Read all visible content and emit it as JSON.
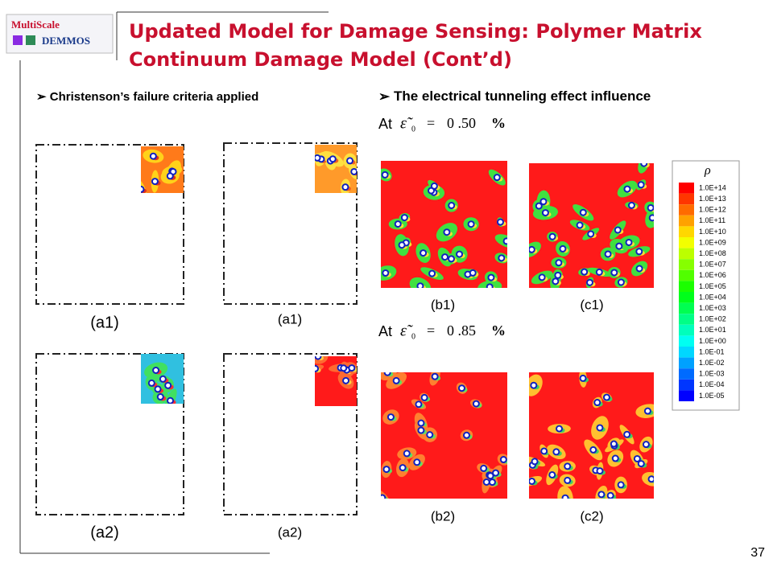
{
  "logo": {
    "line1": "MultiScale",
    "line2": "DEMMOS"
  },
  "title": {
    "line1": "Updated Model for Damage Sensing: Polymer Matrix",
    "line2": "Continuum Damage Model  (Cont’d)"
  },
  "left": {
    "bullet": "Christenson’s failure criteria applied",
    "labels": [
      "(a1)",
      "(a1)",
      "(a2)",
      "(a2)"
    ]
  },
  "right": {
    "bullet": "The electrical tunneling effect influence",
    "strains": [
      {
        "prefix": "At",
        "symbol": "ε̃",
        "subscript": "0",
        "equals": "=",
        "value": "0 .50",
        "unit": "%"
      },
      {
        "prefix": "At",
        "symbol": "ε̃",
        "subscript": "0",
        "equals": "=",
        "value": "0 .85",
        "unit": "%"
      }
    ],
    "labels": [
      "(b1)",
      "(c1)",
      "(b2)",
      "(c2)"
    ]
  },
  "legend": {
    "title": "ρ",
    "entries": [
      "1.0E+14",
      "1.0E+13",
      "1.0E+12",
      "1.0E+11",
      "1.0E+10",
      "1.0E+09",
      "1.0E+08",
      "1.0E+07",
      "1.0E+06",
      "1.0E+05",
      "1.0E+04",
      "1.0E+03",
      "1.0E+02",
      "1.0E+01",
      "1.0E+00",
      "1.0E-01",
      "1.0E-02",
      "1.0E-03",
      "1.0E-04",
      "1.0E-05"
    ]
  },
  "page_number": "37"
}
